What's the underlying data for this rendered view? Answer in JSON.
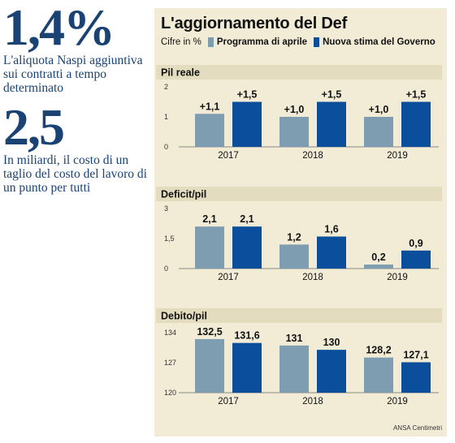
{
  "left": {
    "stat1": {
      "value": "1,4%",
      "text": "L'aliquota Naspi aggiuntiva sui contratti a tempo determinato"
    },
    "stat2": {
      "value": "2,5",
      "text": "In miliardi, il costo di un taglio del costo del lavoro di un punto per tutti"
    }
  },
  "panel": {
    "title": "L'aggiornamento del Def",
    "unit": "Cifre in %",
    "credit": "ANSA Centimetri"
  },
  "colors": {
    "april": "#7f9db0",
    "government": "#0b4f9c",
    "header_bg": "#e3dcbf",
    "panel_bg": "#f2ecd6"
  },
  "chart_data": [
    {
      "type": "bar",
      "title": "Pil reale",
      "categories": [
        "2017",
        "2018",
        "2019"
      ],
      "series": [
        {
          "name": "Programma di aprile",
          "values": [
            1.1,
            1.0,
            1.0
          ],
          "labels": [
            "+1,1",
            "+1,0",
            "+1,0"
          ]
        },
        {
          "name": "Nuova stima del Governo",
          "values": [
            1.5,
            1.5,
            1.5
          ],
          "labels": [
            "+1,5",
            "+1,5",
            "+1,5"
          ]
        }
      ],
      "yticks": [
        "2",
        "1",
        "0"
      ],
      "ylim": [
        0,
        2
      ]
    },
    {
      "type": "bar",
      "title": "Deficit/pil",
      "categories": [
        "2017",
        "2018",
        "2019"
      ],
      "series": [
        {
          "name": "Programma di aprile",
          "values": [
            2.1,
            1.2,
            0.2
          ],
          "labels": [
            "2,1",
            "1,2",
            "0,2"
          ]
        },
        {
          "name": "Nuova stima del Governo",
          "values": [
            2.1,
            1.6,
            0.9
          ],
          "labels": [
            "2,1",
            "1,6",
            "0,9"
          ]
        }
      ],
      "yticks": [
        "3",
        "1,5",
        "0"
      ],
      "ylim": [
        0,
        3
      ]
    },
    {
      "type": "bar",
      "title": "Debito/pil",
      "categories": [
        "2017",
        "2018",
        "2019"
      ],
      "series": [
        {
          "name": "Programma di aprile",
          "values": [
            132.5,
            131,
            128.2
          ],
          "labels": [
            "132,5",
            "131",
            "128,2"
          ]
        },
        {
          "name": "Nuova stima del Governo",
          "values": [
            131.6,
            130,
            127.1
          ],
          "labels": [
            "131,6",
            "130",
            "127,1"
          ]
        }
      ],
      "yticks": [
        "134",
        "127",
        "120"
      ],
      "ylim": [
        120,
        134
      ]
    }
  ]
}
